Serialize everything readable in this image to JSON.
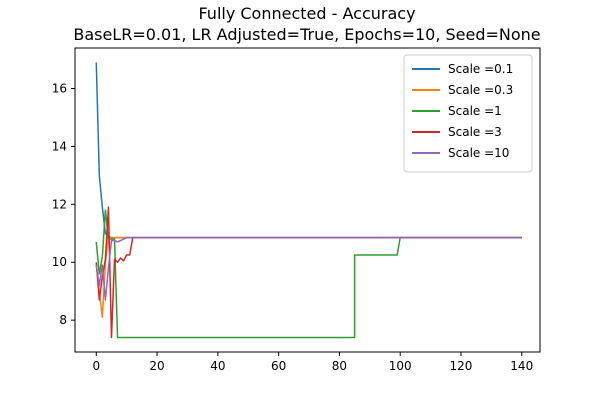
{
  "chart_data": {
    "type": "line",
    "title_line1": "Fully Connected - Accuracy",
    "title_line2": "BaseLR=0.01, LR Adjusted=True, Epochs=10, Seed=None",
    "xlabel": "",
    "ylabel": "",
    "xlim": [
      -7,
      146
    ],
    "ylim": [
      6.9,
      17.4
    ],
    "xticks": [
      0,
      20,
      40,
      60,
      80,
      100,
      120,
      140
    ],
    "yticks": [
      8,
      10,
      12,
      14,
      16
    ],
    "grid": false,
    "legend_position": "top-right",
    "series": [
      {
        "name": "Scale =0.1",
        "color": "#1f77b4",
        "points": [
          [
            0,
            16.9
          ],
          [
            1,
            13.0
          ],
          [
            2,
            11.9
          ],
          [
            3,
            11.0
          ],
          [
            4,
            10.9
          ],
          [
            5,
            10.85
          ],
          [
            6,
            10.85
          ],
          [
            140,
            10.85
          ]
        ]
      },
      {
        "name": "Scale =0.3",
        "color": "#ff7f0e",
        "points": [
          [
            0,
            9.9
          ],
          [
            1,
            9.0
          ],
          [
            2,
            8.1
          ],
          [
            3,
            10.0
          ],
          [
            4,
            10.85
          ],
          [
            5,
            10.85
          ],
          [
            140,
            10.85
          ]
        ]
      },
      {
        "name": "Scale =1",
        "color": "#2ca02c",
        "points": [
          [
            0,
            10.7
          ],
          [
            1,
            9.6
          ],
          [
            2,
            10.2
          ],
          [
            3,
            11.8
          ],
          [
            4,
            10.8
          ],
          [
            5,
            10.8
          ],
          [
            6,
            10.8
          ],
          [
            7,
            7.4
          ],
          [
            85,
            7.4
          ],
          [
            85,
            10.25
          ],
          [
            99,
            10.25
          ],
          [
            100,
            10.85
          ],
          [
            140,
            10.85
          ]
        ]
      },
      {
        "name": "Scale =3",
        "color": "#d62728",
        "points": [
          [
            0,
            10.0
          ],
          [
            1,
            8.7
          ],
          [
            2,
            9.5
          ],
          [
            3,
            10.1
          ],
          [
            4,
            11.9
          ],
          [
            5,
            7.4
          ],
          [
            6,
            10.1
          ],
          [
            7,
            10.0
          ],
          [
            8,
            10.15
          ],
          [
            9,
            10.05
          ],
          [
            10,
            10.25
          ],
          [
            11,
            10.25
          ],
          [
            12,
            10.85
          ],
          [
            140,
            10.85
          ]
        ]
      },
      {
        "name": "Scale =10",
        "color": "#9467bd",
        "points": [
          [
            0,
            9.9
          ],
          [
            1,
            9.2
          ],
          [
            2,
            9.9
          ],
          [
            3,
            8.7
          ],
          [
            4,
            9.8
          ],
          [
            5,
            10.75
          ],
          [
            6,
            10.75
          ],
          [
            7,
            10.7
          ],
          [
            8,
            10.75
          ],
          [
            9,
            10.8
          ],
          [
            10,
            10.85
          ],
          [
            140,
            10.85
          ]
        ]
      }
    ]
  }
}
